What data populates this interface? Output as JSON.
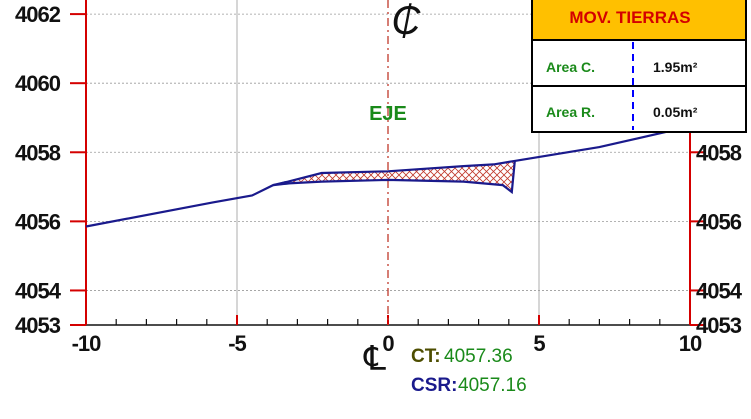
{
  "chart_data": {
    "type": "line",
    "title": "",
    "xlabel": "",
    "ylabel": "",
    "xlim": [
      -10,
      10
    ],
    "ylim": [
      4053,
      4064
    ],
    "x_ticks": [
      -10,
      -5,
      0,
      5,
      10
    ],
    "y_ticks": [
      4053,
      4054,
      4056,
      4058,
      4060,
      4062
    ],
    "grid": true,
    "series": [
      {
        "role": "terrain",
        "color": "#1a1a8c",
        "x": [
          -10,
          -5.8,
          -4.5,
          -3.8,
          -3.3,
          -2.2,
          0,
          2.5,
          3.5,
          4.2,
          7,
          10
        ],
        "y": [
          4055.85,
          4056.55,
          4056.75,
          4057.05,
          4057.15,
          4057.4,
          4057.45,
          4057.6,
          4057.65,
          4057.75,
          4058.15,
          4058.75
        ]
      },
      {
        "role": "subgrade",
        "color": "#1a1a8c",
        "x": [
          -3.8,
          -3.3,
          -2.2,
          0,
          2.5,
          3.8,
          4.1,
          4.2
        ],
        "y": [
          4057.05,
          4057.1,
          4057.15,
          4057.2,
          4057.15,
          4057.05,
          4056.85,
          4057.75
        ]
      }
    ],
    "cut_fill_color": "#c0392b",
    "fill_region_color": "#1f7f7f",
    "axis_label": "EJE",
    "axis_symbol": "₵",
    "centerline_symbol": "℄",
    "annotations": [
      {
        "label": "CT:",
        "value": "4057.36"
      },
      {
        "label": "CSR:",
        "value": "4057.16"
      }
    ]
  },
  "earthworks": {
    "title": "MOV. TIERRAS",
    "rows": [
      {
        "label": "Area C.",
        "value": "1.95m²"
      },
      {
        "label": "Area R.",
        "value": "0.05m²"
      }
    ],
    "header_color": "#ffc000"
  },
  "colors": {
    "centerline": "#c0392b",
    "axis": "#d40000",
    "annotation_label_ct": "#4d4d00",
    "annotation_label_csr": "#1a1a8c",
    "annotation_value": "#1a8a1a"
  }
}
